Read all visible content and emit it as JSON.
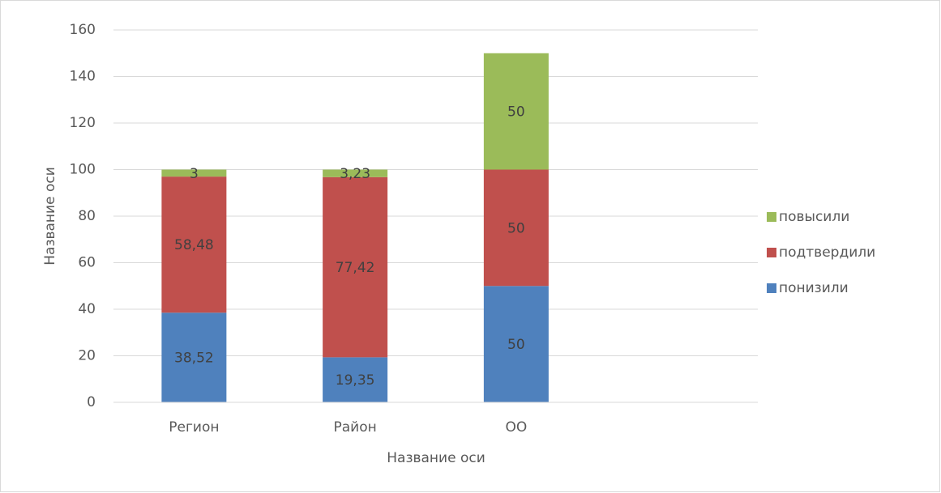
{
  "chart_data": {
    "type": "bar",
    "stacked": true,
    "x_label": "Название оси",
    "y_label": "Название оси",
    "categories": [
      "Регион",
      "Район",
      "ОО",
      null
    ],
    "series": [
      {
        "name": "понизили",
        "color": "#4f81bd",
        "values": [
          38.52,
          19.35,
          50,
          null
        ],
        "value_labels": [
          "38,52",
          "19,35",
          "50",
          null
        ]
      },
      {
        "name": "подтвердили",
        "color": "#c0504d",
        "values": [
          58.48,
          77.42,
          50,
          null
        ],
        "value_labels": [
          "58,48",
          "77,42",
          "50",
          null
        ]
      },
      {
        "name": "повысили",
        "color": "#9bbb59",
        "values": [
          3,
          3.23,
          50,
          null
        ],
        "value_labels": [
          "3",
          "3,23",
          "50",
          null
        ]
      }
    ],
    "ylim": [
      0,
      160
    ],
    "yticks": [
      0,
      20,
      40,
      60,
      80,
      100,
      120,
      140,
      160
    ],
    "grid": true,
    "legend": "right"
  }
}
